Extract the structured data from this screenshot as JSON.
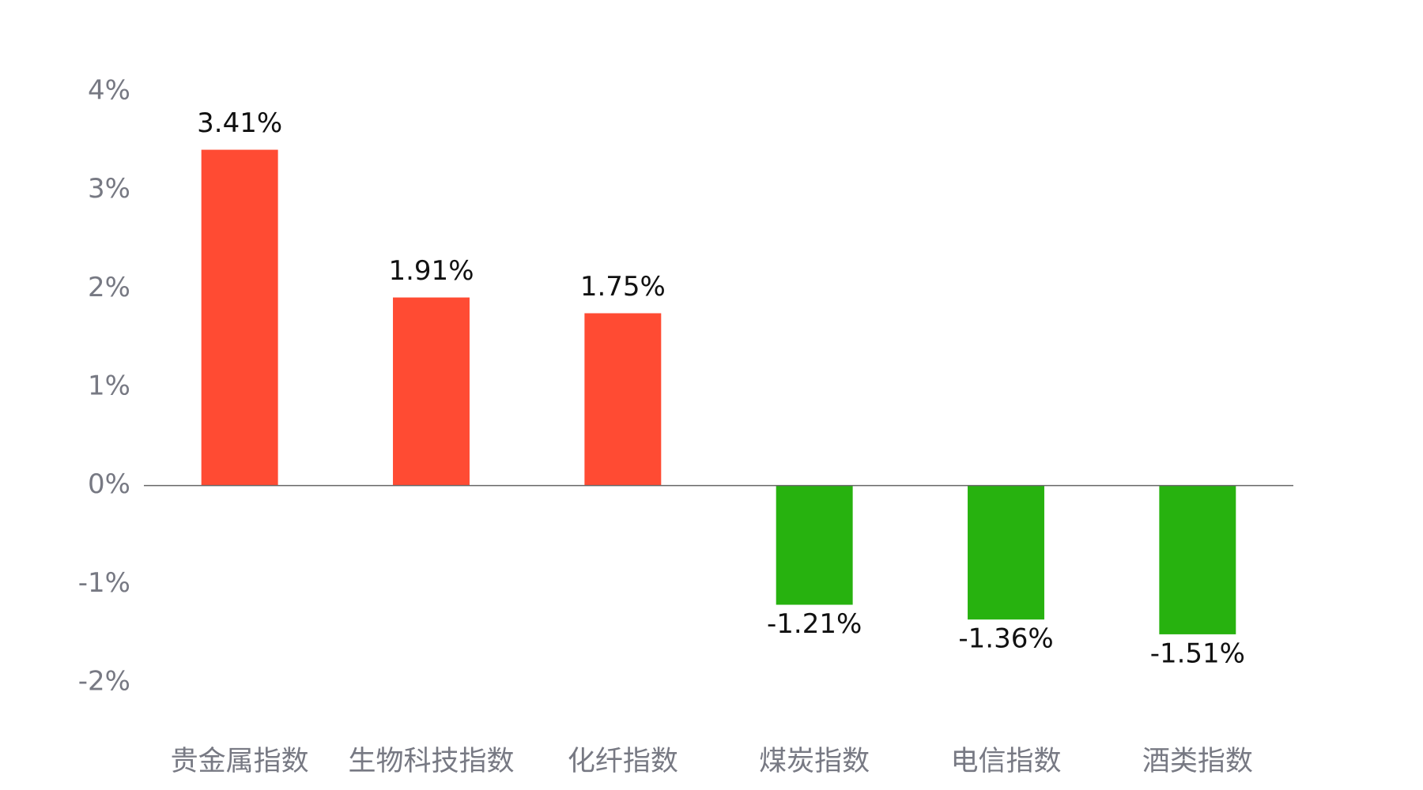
{
  "chart_data": {
    "type": "bar",
    "categories": [
      "贵金属指数",
      "生物科技指数",
      "化纤指数",
      "煤炭指数",
      "电信指数",
      "酒类指数"
    ],
    "values": [
      3.41,
      1.91,
      1.75,
      -1.21,
      -1.36,
      -1.51
    ],
    "value_labels": [
      "3.41%",
      "1.91%",
      "1.75%",
      "-1.21%",
      "-1.36%",
      "-1.51%"
    ],
    "positive_color": "#ff4b33",
    "negative_color": "#27b20f",
    "ylim": [
      -2,
      4
    ],
    "yticks": [
      {
        "value": 4,
        "label": "4%"
      },
      {
        "value": 3,
        "label": "3%"
      },
      {
        "value": 2,
        "label": "2%"
      },
      {
        "value": 1,
        "label": "1%"
      },
      {
        "value": 0,
        "label": "0%"
      },
      {
        "value": -1,
        "label": "-1%"
      },
      {
        "value": -2,
        "label": "-2%"
      }
    ],
    "grid": false
  }
}
